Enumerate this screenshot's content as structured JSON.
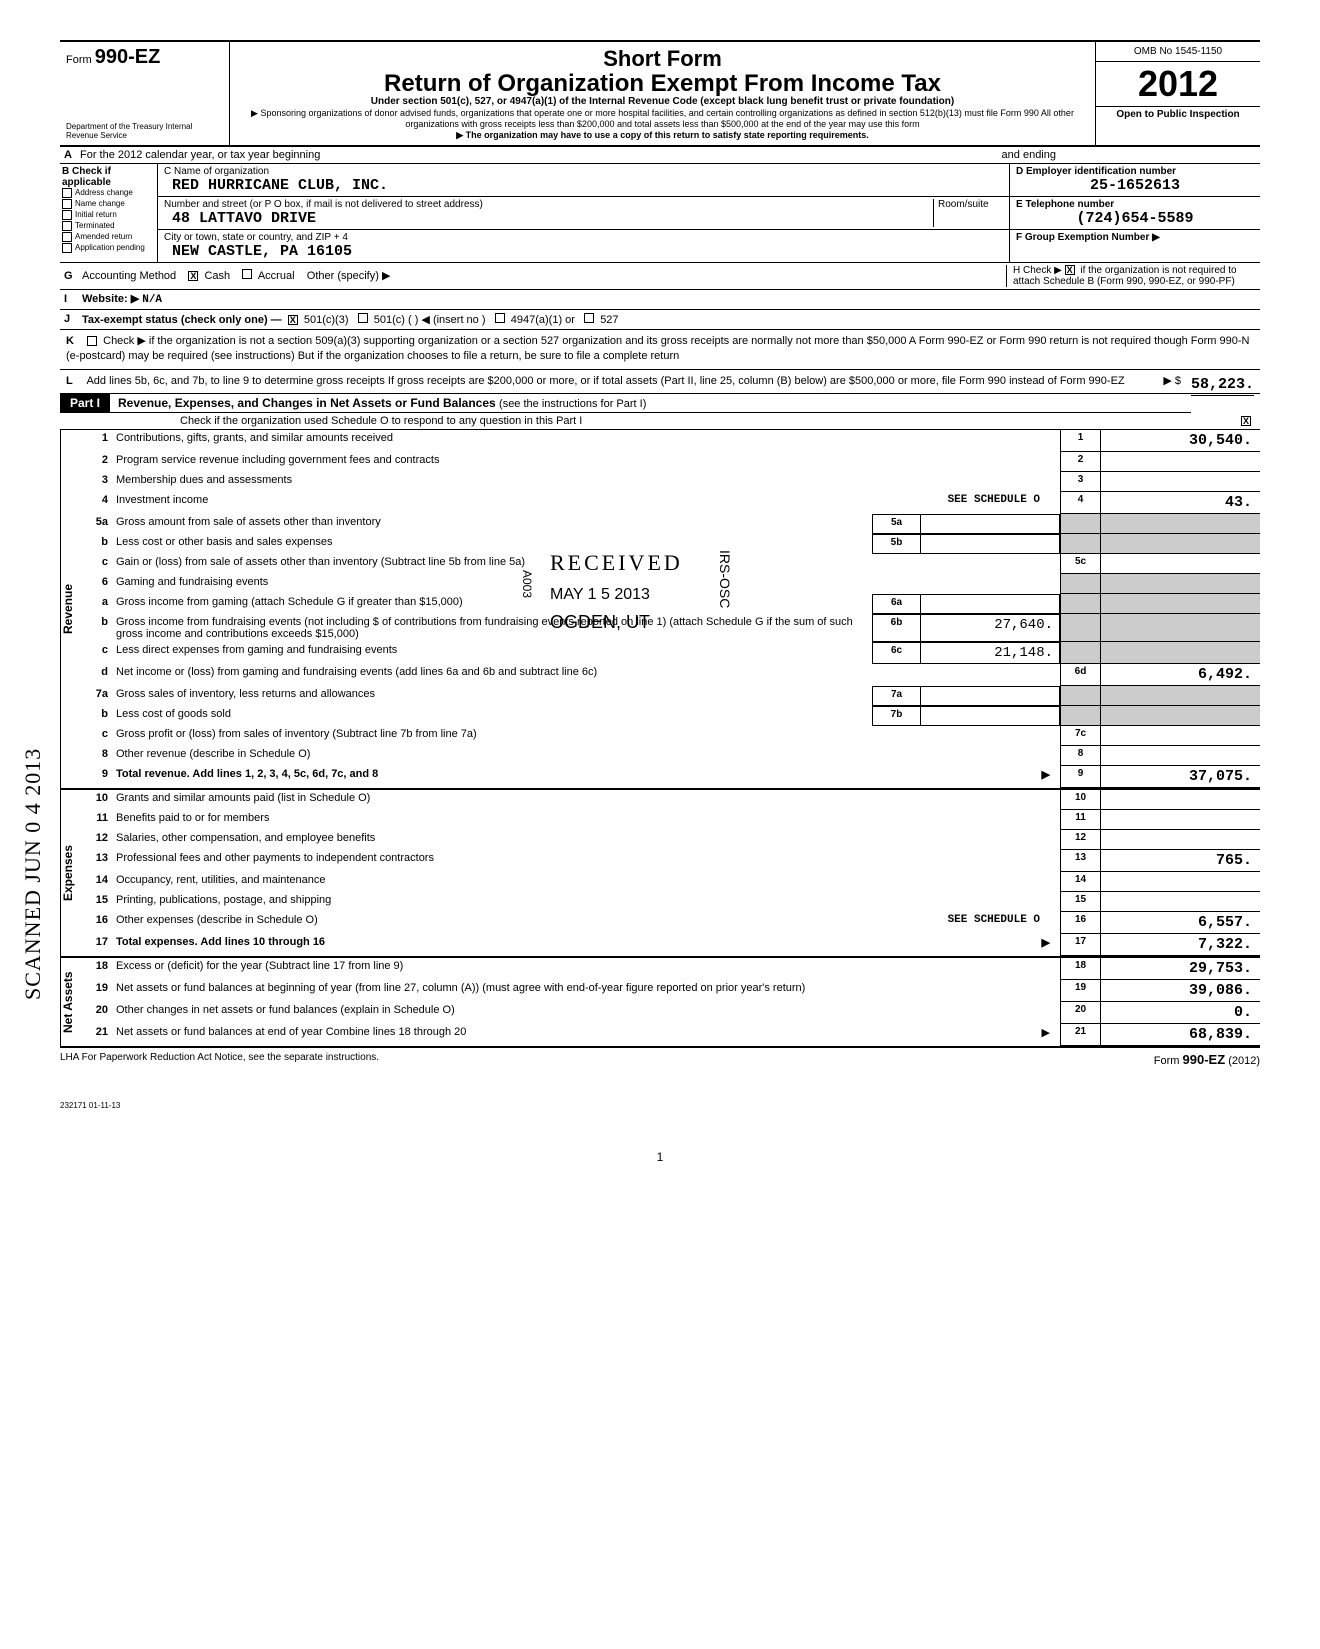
{
  "stamp_vertical": "SCANNED JUN 0 4 2013",
  "header": {
    "form_prefix": "Form",
    "form_number": "990-EZ",
    "dept": "Department of the Treasury\nInternal Revenue Service",
    "title1": "Short Form",
    "title2": "Return of Organization Exempt From Income Tax",
    "sub1": "Under section 501(c), 527, or 4947(a)(1) of the Internal Revenue Code\n(except black lung benefit trust or private foundation)",
    "sub2": "▶ Sponsoring organizations of donor advised funds, organizations that operate one or more hospital facilities, and certain controlling organizations as defined in section 512(b)(13) must file Form 990  All other organizations with gross receipts less than $200,000 and total assets less than $500,000 at the end of the year may use this form",
    "sub3": "▶ The organization may have to use a copy of this return to satisfy state reporting requirements.",
    "omb": "OMB No  1545-1150",
    "year": "2012",
    "open_public": "Open to Public\nInspection"
  },
  "row_a": {
    "letter": "A",
    "text": "For the 2012 calendar year, or tax year beginning",
    "text2": "and ending"
  },
  "section_b": {
    "letter": "B",
    "hdr": "Check if\napplicable",
    "options": [
      "Address change",
      "Name change",
      "Initial return",
      "Terminated",
      "Amended return",
      "Application pending"
    ]
  },
  "section_c": {
    "name_lbl": "C Name of organization",
    "name_val": "RED HURRICANE CLUB, INC.",
    "addr_lbl": "Number and street (or P O  box, if mail is not delivered to street address)",
    "room_lbl": "Room/suite",
    "addr_val": "48 LATTAVO DRIVE",
    "city_lbl": "City or town, state or country, and ZIP + 4",
    "city_val": "NEW CASTLE, PA  16105"
  },
  "section_d": {
    "ein_lbl": "D Employer identification number",
    "ein_val": "25-1652613",
    "tel_lbl": "E  Telephone number",
    "tel_val": "(724)654-5589",
    "grp_lbl": "F  Group Exemption\n   Number ▶"
  },
  "row_g": {
    "letter": "G",
    "label": "Accounting Method",
    "cash": "Cash",
    "accrual": "Accrual",
    "other": "Other (specify) ▶",
    "h_text": "H Check ▶",
    "h_text2": "if the organization is not\nrequired to attach Schedule B\n(Form 990, 990-EZ, or 990-PF)"
  },
  "row_i": {
    "letter": "I",
    "label": "Website: ▶",
    "val": "N/A"
  },
  "row_j": {
    "letter": "J",
    "label": "Tax-exempt status (check only one) —",
    "opt1": "501(c)(3)",
    "opt2": "501(c) (",
    "opt2b": ") ◀ (insert no )",
    "opt3": "4947(a)(1) or",
    "opt4": "527"
  },
  "row_k": {
    "letter": "K",
    "text": "Check ▶           if the organization is not a section 509(a)(3) supporting organization or a section 527 organization and its gross receipts are normally not more than $50,000  A Form 990-EZ or Form 990 return is not required though Form 990-N (e-postcard) may be required (see instructions)  But if the organization chooses to file a return, be sure to file a complete return"
  },
  "row_l": {
    "letter": "L",
    "text": "Add lines 5b, 6c, and 7b, to line 9 to determine gross receipts  If gross receipts are $200,000 or more, or if total assets (Part II, line 25, column (B) below) are $500,000 or more, file Form 990 instead of Form 990-EZ",
    "arrow": "▶  $",
    "amount": "58,223."
  },
  "part1": {
    "label": "Part I",
    "title": "Revenue, Expenses, and Changes in Net Assets or Fund Balances",
    "title_thin": "(see the instructions for Part I)",
    "check_o": "Check if the organization used Schedule O to respond to any question in this Part I"
  },
  "received_stamp": {
    "line1": "RECEIVED",
    "line2": "A003",
    "line3": "MAY 1 5 2013",
    "line4": "of contributions",
    "line5": "OGDEN, UT",
    "side": "IRS-OSC"
  },
  "revenue_lines": [
    {
      "n": "1",
      "d": "Contributions, gifts, grants, and similar amounts received",
      "cn": "1",
      "cv": "30,540."
    },
    {
      "n": "2",
      "d": "Program service revenue including government fees and contracts",
      "cn": "2",
      "cv": ""
    },
    {
      "n": "3",
      "d": "Membership dues and assessments",
      "cn": "3",
      "cv": ""
    },
    {
      "n": "4",
      "d": "Investment income",
      "extra": "SEE SCHEDULE O",
      "cn": "4",
      "cv": "43."
    },
    {
      "n": "5a",
      "d": "Gross amount from sale of assets other than inventory",
      "ic": "5a",
      "iv": ""
    },
    {
      "n": "b",
      "sub": true,
      "d": "Less  cost or other basis and sales expenses",
      "ic": "5b",
      "iv": ""
    },
    {
      "n": "c",
      "sub": true,
      "d": "Gain or (loss) from sale of assets other than inventory (Subtract line 5b from line 5a)",
      "cn": "5c",
      "cv": ""
    },
    {
      "n": "6",
      "d": "Gaming and fundraising events"
    },
    {
      "n": "a",
      "sub": true,
      "d": "Gross income from gaming (attach Schedule G if greater than $15,000)",
      "ic": "6a",
      "iv": ""
    },
    {
      "n": "b",
      "sub": true,
      "d": "Gross income from fundraising events (not including $                         of contributions from fundraising events reported on line 1) (attach Schedule G if the sum of such gross income and contributions exceeds $15,000)",
      "ic": "6b",
      "iv": "27,640."
    },
    {
      "n": "c",
      "sub": true,
      "d": "Less  direct expenses from gaming and fundraising events",
      "ic": "6c",
      "iv": "21,148."
    },
    {
      "n": "d",
      "sub": true,
      "d": "Net income or (loss) from gaming and fundraising events (add lines 6a and 6b and subtract line 6c)",
      "cn": "6d",
      "cv": "6,492."
    },
    {
      "n": "7a",
      "d": "Gross sales of inventory, less returns and allowances",
      "ic": "7a",
      "iv": ""
    },
    {
      "n": "b",
      "sub": true,
      "d": "Less  cost of goods sold",
      "ic": "7b",
      "iv": ""
    },
    {
      "n": "c",
      "sub": true,
      "d": "Gross profit or (loss) from sales of inventory (Subtract line 7b from line 7a)",
      "cn": "7c",
      "cv": ""
    },
    {
      "n": "8",
      "d": "Other revenue (describe in Schedule O)",
      "cn": "8",
      "cv": ""
    },
    {
      "n": "9",
      "d": "Total revenue. Add lines 1, 2, 3, 4, 5c, 6d, 7c, and 8",
      "total": true,
      "arrow": true,
      "cn": "9",
      "cv": "37,075."
    }
  ],
  "expense_lines": [
    {
      "n": "10",
      "d": "Grants and similar amounts paid (list in Schedule O)",
      "cn": "10",
      "cv": ""
    },
    {
      "n": "11",
      "d": "Benefits paid to or for members",
      "cn": "11",
      "cv": ""
    },
    {
      "n": "12",
      "d": "Salaries, other compensation, and employee benefits",
      "cn": "12",
      "cv": ""
    },
    {
      "n": "13",
      "d": "Professional fees and other payments to independent contractors",
      "cn": "13",
      "cv": "765."
    },
    {
      "n": "14",
      "d": "Occupancy, rent, utilities, and maintenance",
      "cn": "14",
      "cv": ""
    },
    {
      "n": "15",
      "d": "Printing, publications, postage, and shipping",
      "cn": "15",
      "cv": ""
    },
    {
      "n": "16",
      "d": "Other expenses (describe in Schedule O)",
      "extra": "SEE SCHEDULE O",
      "cn": "16",
      "cv": "6,557."
    },
    {
      "n": "17",
      "d": "Total expenses. Add lines 10 through 16",
      "total": true,
      "arrow": true,
      "cn": "17",
      "cv": "7,322."
    }
  ],
  "netasset_lines": [
    {
      "n": "18",
      "d": "Excess or (deficit) for the year (Subtract line 17 from line 9)",
      "cn": "18",
      "cv": "29,753."
    },
    {
      "n": "19",
      "d": "Net assets or fund balances at beginning of year (from line 27, column (A)) (must agree with end-of-year figure reported on prior year's return)",
      "cn": "19",
      "cv": "39,086."
    },
    {
      "n": "20",
      "d": "Other changes in net assets or fund balances (explain in Schedule O)",
      "cn": "20",
      "cv": "0."
    },
    {
      "n": "21",
      "d": "Net assets or fund balances at end of year  Combine lines 18 through 20",
      "arrow": true,
      "cn": "21",
      "cv": "68,839."
    }
  ],
  "vert_labels": {
    "revenue": "Revenue",
    "expenses": "Expenses",
    "netassets": "Net Assets"
  },
  "footer": {
    "lha": "LHA  For Paperwork Reduction Act Notice, see the separate instructions.",
    "form": "Form",
    "formno": "990-EZ",
    "formyear": "(2012)",
    "code": "232171\n01-11-13",
    "page": "1"
  }
}
